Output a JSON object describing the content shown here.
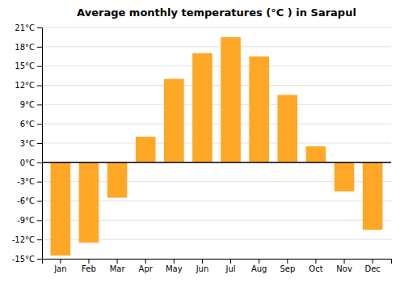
{
  "chart_data": {
    "type": "bar",
    "title": "Average monthly temperatures (°C ) in Sarapul",
    "categories": [
      "Jan",
      "Feb",
      "Mar",
      "Apr",
      "May",
      "Jun",
      "Jul",
      "Aug",
      "Sep",
      "Oct",
      "Nov",
      "Dec"
    ],
    "values": [
      -14.5,
      -12.5,
      -5.5,
      4.0,
      13.0,
      17.0,
      19.5,
      16.5,
      10.5,
      2.5,
      -4.5,
      -10.5
    ],
    "color": "#FFA726",
    "ylim": [
      -15,
      21
    ],
    "yticks": [
      {
        "value": -15,
        "label": "-15°C"
      },
      {
        "value": -12,
        "label": "-12°C"
      },
      {
        "value": -9,
        "label": "-9°C"
      },
      {
        "value": -6,
        "label": "-6°C"
      },
      {
        "value": -3,
        "label": "-3°C"
      },
      {
        "value": 0,
        "label": "0°C"
      },
      {
        "value": 3,
        "label": "3°C"
      },
      {
        "value": 6,
        "label": "6°C"
      },
      {
        "value": 9,
        "label": "9°C"
      },
      {
        "value": 12,
        "label": "12°C"
      },
      {
        "value": 15,
        "label": "15°C"
      },
      {
        "value": 18,
        "label": "18°C"
      },
      {
        "value": 21,
        "label": "21°C"
      }
    ],
    "grid": true
  }
}
